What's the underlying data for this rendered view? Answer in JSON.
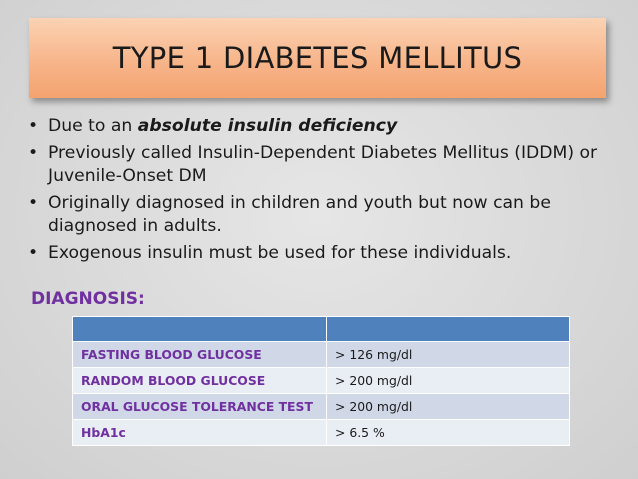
{
  "title": "TYPE 1 DIABETES MELLITUS",
  "bullets": [
    {
      "prefix": "Due to an ",
      "emphasis": "absolute insulin deficiency",
      "suffix": ""
    },
    {
      "prefix": "Previously called Insulin-Dependent Diabetes Mellitus (IDDM) or Juvenile-Onset DM",
      "emphasis": "",
      "suffix": ""
    },
    {
      "prefix": "Originally diagnosed in children and youth but now can be diagnosed in adults.",
      "emphasis": "",
      "suffix": ""
    },
    {
      "prefix": "Exogenous insulin must be used for these individuals.",
      "emphasis": "",
      "suffix": ""
    }
  ],
  "bullet_glyph": "•",
  "diagnosis_heading": "DIAGNOSIS:",
  "table": {
    "header": [
      "",
      ""
    ],
    "rows": [
      {
        "test": "FASTING BLOOD GLUCOSE",
        "value": "> 126 mg/dl"
      },
      {
        "test": "RANDOM BLOOD GLUCOSE",
        "value": "> 200 mg/dl"
      },
      {
        "test": "ORAL GLUCOSE TOLERANCE TEST",
        "value": "> 200 mg/dl"
      },
      {
        "test": "HbA1c",
        "value": "> 6.5 %"
      }
    ]
  },
  "colors": {
    "accent_purple": "#7030a0",
    "table_header_blue": "#4f81bd",
    "title_orange": "#f7b58a"
  }
}
